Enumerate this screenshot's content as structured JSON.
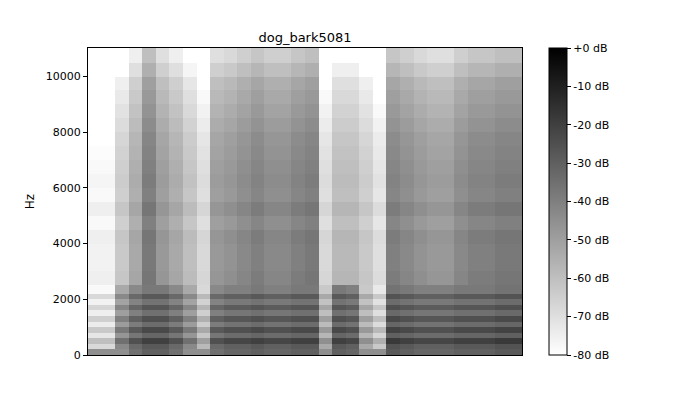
{
  "chart_data": {
    "type": "heatmap",
    "title": "dog_bark5081",
    "y_label": "Hz",
    "tick_labels": "y",
    "grid": false,
    "ylim": [
      0,
      11025
    ],
    "yticks": [
      0,
      2000,
      4000,
      6000,
      8000,
      10000
    ],
    "y_edges": [
      0,
      200,
      400,
      600,
      800,
      1000,
      1200,
      1400,
      1600,
      1800,
      2000,
      2200,
      2500,
      3000,
      3500,
      4000,
      4500,
      5000,
      5500,
      6000,
      6500,
      7000,
      7500,
      8000,
      8500,
      9000,
      9500,
      10000,
      10500,
      11025
    ],
    "colorbar": {
      "range": [
        -80,
        0
      ],
      "ticks": [
        {
          "value": 0,
          "label": "+0 dB"
        },
        {
          "value": -10,
          "label": "-10 dB"
        },
        {
          "value": -20,
          "label": "-20 dB"
        },
        {
          "value": -30,
          "label": "-30 dB"
        },
        {
          "value": -40,
          "label": "-40 dB"
        },
        {
          "value": -50,
          "label": "-50 dB"
        },
        {
          "value": -60,
          "label": "-60 dB"
        },
        {
          "value": -70,
          "label": "-70 dB"
        },
        {
          "value": -80,
          "label": "-80 dB"
        }
      ]
    },
    "cells": [
      [
        -45,
        -45,
        -45,
        -35,
        -30,
        -30,
        -35,
        -45,
        -45,
        -35,
        -32,
        -32,
        -30,
        -32,
        -32,
        -30,
        -30,
        -45,
        -30,
        -32,
        -45,
        -45,
        -28,
        -30,
        -32,
        -32,
        -32,
        -30,
        -30,
        -30,
        -28,
        -28
      ],
      [
        -68,
        -68,
        -43,
        -33,
        -28,
        -28,
        -33,
        -43,
        -58,
        -33,
        -30,
        -30,
        -28,
        -30,
        -30,
        -28,
        -28,
        -53,
        -28,
        -30,
        -53,
        -63,
        -26,
        -28,
        -30,
        -30,
        -30,
        -28,
        -28,
        -28,
        -26,
        -26
      ],
      [
        -60,
        -60,
        -35,
        -25,
        -20,
        -20,
        -25,
        -35,
        -50,
        -25,
        -22,
        -22,
        -20,
        -22,
        -22,
        -20,
        -20,
        -45,
        -20,
        -22,
        -45,
        -55,
        -18,
        -20,
        -22,
        -22,
        -22,
        -20,
        -20,
        -20,
        -18,
        -18
      ],
      [
        -72,
        -72,
        -47,
        -37,
        -32,
        -32,
        -37,
        -47,
        -62,
        -37,
        -34,
        -34,
        -32,
        -34,
        -34,
        -32,
        -32,
        -57,
        -32,
        -34,
        -57,
        -67,
        -30,
        -32,
        -34,
        -34,
        -34,
        -32,
        -32,
        -32,
        -30,
        -30
      ],
      [
        -63,
        -63,
        -38,
        -28,
        -23,
        -23,
        -28,
        -38,
        -53,
        -28,
        -25,
        -25,
        -23,
        -25,
        -25,
        -23,
        -23,
        -48,
        -23,
        -25,
        -48,
        -58,
        -21,
        -23,
        -25,
        -25,
        -25,
        -23,
        -23,
        -23,
        -21,
        -21
      ],
      [
        -74,
        -74,
        -49,
        -39,
        -34,
        -34,
        -39,
        -49,
        -64,
        -39,
        -36,
        -36,
        -34,
        -36,
        -36,
        -34,
        -34,
        -59,
        -34,
        -36,
        -59,
        -69,
        -32,
        -34,
        -36,
        -36,
        -36,
        -34,
        -34,
        -34,
        -32,
        -32
      ],
      [
        -65,
        -65,
        -40,
        -30,
        -25,
        -25,
        -30,
        -40,
        -55,
        -30,
        -27,
        -27,
        -25,
        -27,
        -27,
        -25,
        -25,
        -50,
        -25,
        -27,
        -50,
        -60,
        -23,
        -25,
        -27,
        -27,
        -27,
        -25,
        -25,
        -25,
        -23,
        -23
      ],
      [
        -75,
        -75,
        -50,
        -40,
        -35,
        -35,
        -40,
        -50,
        -65,
        -40,
        -37,
        -37,
        -35,
        -37,
        -37,
        -35,
        -35,
        -60,
        -35,
        -37,
        -60,
        -70,
        -33,
        -35,
        -37,
        -37,
        -37,
        -35,
        -35,
        -35,
        -33,
        -33
      ],
      [
        -67,
        -67,
        -42,
        -32,
        -27,
        -27,
        -32,
        -42,
        -57,
        -32,
        -29,
        -29,
        -27,
        -29,
        -29,
        -27,
        -27,
        -52,
        -27,
        -29,
        -52,
        -62,
        -25,
        -27,
        -29,
        -29,
        -29,
        -27,
        -27,
        -27,
        -25,
        -25
      ],
      [
        -76,
        -76,
        -51,
        -41,
        -36,
        -36,
        -41,
        -51,
        -66,
        -41,
        -38,
        -38,
        -36,
        -38,
        -38,
        -36,
        -36,
        -61,
        -36,
        -38,
        -61,
        -71,
        -34,
        -36,
        -38,
        -38,
        -38,
        -36,
        -36,
        -36,
        -34,
        -34
      ],
      [
        -68,
        -68,
        -43,
        -33,
        -28,
        -28,
        -33,
        -43,
        -58,
        -33,
        -30,
        -30,
        -28,
        -30,
        -30,
        -28,
        -28,
        -53,
        -28,
        -30,
        -53,
        -63,
        -26,
        -28,
        -30,
        -30,
        -30,
        -28,
        -28,
        -28,
        -26,
        -26
      ],
      [
        -78,
        -78,
        -53,
        -43,
        -38,
        -38,
        -43,
        -53,
        -68,
        -43,
        -40,
        -40,
        -38,
        -40,
        -40,
        -38,
        -38,
        -63,
        -38,
        -40,
        -63,
        -73,
        -36,
        -38,
        -40,
        -40,
        -40,
        -38,
        -38,
        -38,
        -36,
        -36
      ],
      [
        -75,
        -75,
        -62,
        -52,
        -37,
        -47,
        -52,
        -59,
        -67,
        -47,
        -45,
        -42,
        -39,
        -42,
        -42,
        -39,
        -37,
        -67,
        -57,
        -57,
        -62,
        -69,
        -39,
        -42,
        -45,
        -47,
        -47,
        -42,
        -39,
        -39,
        -37,
        -37
      ],
      [
        -76,
        -76,
        -63,
        -53,
        -38,
        -48,
        -53,
        -60,
        -68,
        -48,
        -46,
        -43,
        -40,
        -43,
        -43,
        -40,
        -38,
        -68,
        -58,
        -58,
        -63,
        -70,
        -40,
        -43,
        -46,
        -48,
        -48,
        -43,
        -40,
        -40,
        -38,
        -38
      ],
      [
        -76,
        -76,
        -63,
        -53,
        -38,
        -48,
        -53,
        -60,
        -68,
        -48,
        -46,
        -43,
        -40,
        -43,
        -43,
        -40,
        -38,
        -68,
        -58,
        -58,
        -63,
        -70,
        -40,
        -43,
        -46,
        -48,
        -48,
        -43,
        -40,
        -40,
        -38,
        -38
      ],
      [
        -75,
        -75,
        -62,
        -52,
        -37,
        -47,
        -52,
        -59,
        -67,
        -47,
        -45,
        -42,
        -39,
        -42,
        -42,
        -39,
        -37,
        -67,
        -57,
        -57,
        -62,
        -69,
        -39,
        -42,
        -45,
        -47,
        -47,
        -42,
        -39,
        -39,
        -37,
        -37
      ],
      [
        -78,
        -78,
        -65,
        -55,
        -40,
        -50,
        -55,
        -62,
        -70,
        -50,
        -48,
        -45,
        -42,
        -45,
        -45,
        -42,
        -40,
        -70,
        -60,
        -60,
        -65,
        -72,
        -42,
        -45,
        -48,
        -50,
        -50,
        -45,
        -42,
        -42,
        -40,
        -40
      ],
      [
        -75,
        -75,
        -62,
        -52,
        -37,
        -47,
        -52,
        -59,
        -67,
        -47,
        -45,
        -42,
        -39,
        -42,
        -42,
        -39,
        -37,
        -67,
        -57,
        -57,
        -62,
        -69,
        -39,
        -42,
        -45,
        -47,
        -47,
        -42,
        -39,
        -39,
        -37,
        -37
      ],
      [
        -78,
        -78,
        -65,
        -55,
        -40,
        -50,
        -55,
        -62,
        -70,
        -50,
        -48,
        -45,
        -42,
        -45,
        -45,
        -42,
        -40,
        -70,
        -60,
        -60,
        -65,
        -72,
        -42,
        -45,
        -48,
        -50,
        -50,
        -45,
        -42,
        -42,
        -40,
        -40
      ],
      [
        -77,
        -77,
        -64,
        -54,
        -39,
        -49,
        -54,
        -61,
        -69,
        -49,
        -47,
        -44,
        -41,
        -44,
        -44,
        -41,
        -39,
        -69,
        -59,
        -59,
        -64,
        -71,
        -41,
        -44,
        -47,
        -49,
        -49,
        -44,
        -41,
        -41,
        -39,
        -39
      ],
      [
        -78,
        -78,
        -65,
        -55,
        -40,
        -50,
        -55,
        -62,
        -70,
        -50,
        -48,
        -45,
        -42,
        -45,
        -45,
        -42,
        -40,
        -70,
        -60,
        -60,
        -65,
        -72,
        -42,
        -45,
        -48,
        -50,
        -50,
        -45,
        -42,
        -42,
        -40,
        -40
      ],
      [
        -79,
        -79,
        -66,
        -56,
        -41,
        -51,
        -56,
        -63,
        -71,
        -51,
        -49,
        -46,
        -43,
        -46,
        -46,
        -43,
        -41,
        -71,
        -61,
        -61,
        -66,
        -73,
        -43,
        -46,
        -49,
        -51,
        -51,
        -46,
        -43,
        -43,
        -41,
        -41
      ],
      [
        -80,
        -80,
        -67,
        -57,
        -42,
        -52,
        -57,
        -64,
        -72,
        -52,
        -50,
        -47,
        -44,
        -47,
        -47,
        -44,
        -42,
        -72,
        -62,
        -62,
        -67,
        -74,
        -44,
        -47,
        -50,
        -52,
        -52,
        -47,
        -44,
        -44,
        -42,
        -42
      ],
      [
        -80,
        -80,
        -69,
        -59,
        -44,
        -54,
        -59,
        -66,
        -74,
        -54,
        -52,
        -49,
        -46,
        -49,
        -49,
        -46,
        -44,
        -74,
        -64,
        -64,
        -69,
        -76,
        -46,
        -49,
        -52,
        -54,
        -54,
        -49,
        -46,
        -46,
        -44,
        -44
      ],
      [
        -80,
        -80,
        -71,
        -61,
        -46,
        -56,
        -61,
        -68,
        -76,
        -56,
        -54,
        -51,
        -48,
        -51,
        -51,
        -48,
        -46,
        -76,
        -66,
        -66,
        -71,
        -78,
        -48,
        -51,
        -54,
        -56,
        -56,
        -51,
        -48,
        -48,
        -46,
        -46
      ],
      [
        -80,
        -80,
        -73,
        -63,
        -48,
        -58,
        -63,
        -70,
        -78,
        -58,
        -56,
        -53,
        -50,
        -53,
        -53,
        -50,
        -48,
        -78,
        -68,
        -68,
        -73,
        -80,
        -50,
        -53,
        -56,
        -58,
        -58,
        -53,
        -50,
        -50,
        -48,
        -48
      ],
      [
        -80,
        -80,
        -75,
        -65,
        -50,
        -60,
        -65,
        -72,
        -80,
        -60,
        -58,
        -55,
        -52,
        -55,
        -55,
        -52,
        -50,
        -80,
        -70,
        -70,
        -75,
        -80,
        -52,
        -55,
        -58,
        -60,
        -60,
        -55,
        -52,
        -52,
        -50,
        -50
      ],
      [
        -80,
        -80,
        -80,
        -70,
        -55,
        -65,
        -70,
        -77,
        -80,
        -65,
        -63,
        -60,
        -57,
        -60,
        -60,
        -57,
        -55,
        -80,
        -75,
        -75,
        -80,
        -80,
        -57,
        -60,
        -63,
        -65,
        -65,
        -60,
        -57,
        -57,
        -55,
        -55
      ],
      [
        -80,
        -80,
        -80,
        -75,
        -60,
        -70,
        -75,
        -80,
        -80,
        -70,
        -68,
        -65,
        -62,
        -65,
        -65,
        -62,
        -60,
        -80,
        -80,
        -80,
        -80,
        -80,
        -62,
        -65,
        -68,
        -70,
        -70,
        -65,
        -62,
        -62,
        -60,
        -60
      ]
    ]
  }
}
